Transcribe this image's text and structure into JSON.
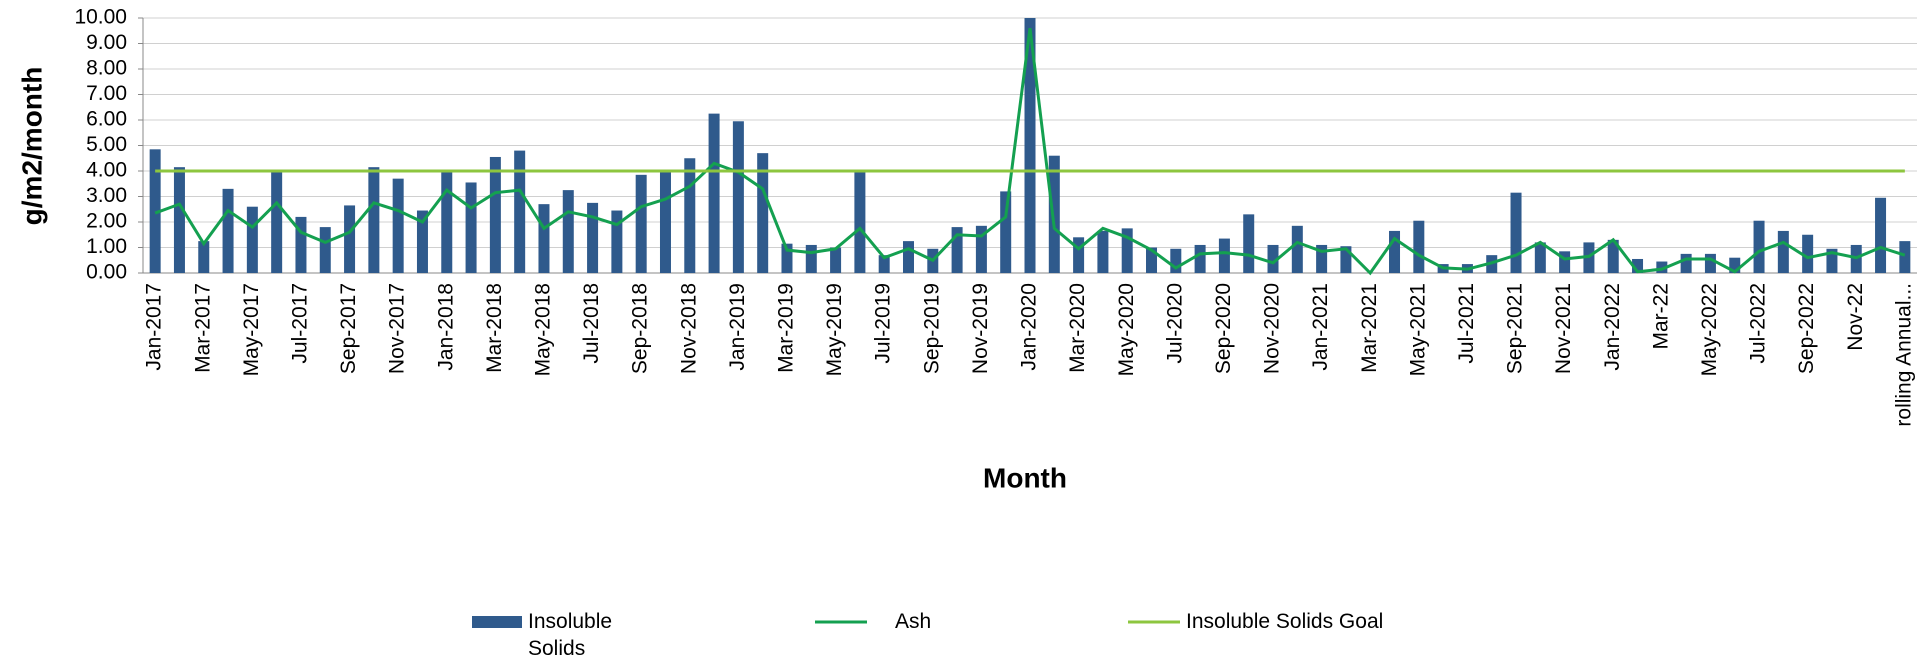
{
  "chart_data": {
    "type": "bar_line",
    "x_label": "Month",
    "y_label": "g/m2/month",
    "categories": [
      "Jan-2017",
      null,
      "Mar-2017",
      null,
      "May-2017",
      null,
      "Jul-2017",
      null,
      "Sep-2017",
      null,
      "Nov-2017",
      null,
      "Jan-2018",
      null,
      "Mar-2018",
      null,
      "May-2018",
      null,
      "Jul-2018",
      null,
      "Sep-2018",
      null,
      "Nov-2018",
      null,
      "Jan-2019",
      null,
      "Mar-2019",
      null,
      "May-2019",
      null,
      "Jul-2019",
      null,
      "Sep-2019",
      null,
      "Nov-2019",
      null,
      "Jan-2020",
      null,
      "Mar-2020",
      null,
      "May-2020",
      null,
      "Jul-2020",
      null,
      "Sep-2020",
      null,
      "Nov-2020",
      null,
      "Jan-2021",
      null,
      "Mar-2021",
      null,
      "May-2021",
      null,
      "Jul-2021",
      null,
      "Sep-2021",
      null,
      "Nov-2021",
      null,
      "Jan-2022",
      null,
      "Mar-22",
      null,
      "May-2022",
      null,
      "Jul-2022",
      null,
      "Sep-2022",
      null,
      "Nov-22",
      null,
      "rolling Annual..."
    ],
    "series": [
      {
        "name": "Insoluble Solids",
        "kind": "bar",
        "color": "#2f5a8c",
        "values": [
          4.85,
          4.15,
          1.25,
          3.3,
          2.6,
          4.0,
          2.2,
          1.8,
          2.65,
          4.15,
          3.7,
          2.45,
          4.0,
          3.55,
          4.55,
          4.8,
          2.7,
          3.25,
          2.75,
          2.45,
          3.85,
          3.95,
          4.5,
          6.25,
          5.95,
          4.7,
          1.15,
          1.1,
          1.0,
          4.0,
          0.7,
          1.25,
          0.95,
          1.8,
          1.85,
          3.2,
          10.0,
          4.6,
          1.4,
          1.65,
          1.75,
          1.0,
          0.95,
          1.1,
          1.35,
          2.3,
          1.1,
          1.85,
          1.1,
          1.05,
          0.0,
          1.65,
          2.05,
          0.35,
          0.35,
          0.7,
          3.15,
          1.2,
          0.85,
          1.2,
          1.3,
          0.55,
          0.45,
          0.75,
          0.75,
          0.6,
          2.05,
          1.65,
          1.5,
          0.95,
          1.1,
          2.95,
          1.25
        ]
      },
      {
        "name": "Ash",
        "kind": "line",
        "color": "#14a050",
        "values": [
          2.35,
          2.7,
          1.15,
          2.45,
          1.8,
          2.75,
          1.6,
          1.2,
          1.6,
          2.75,
          2.45,
          2.0,
          3.25,
          2.55,
          3.15,
          3.25,
          1.75,
          2.4,
          2.2,
          1.9,
          2.6,
          2.9,
          3.4,
          4.3,
          3.95,
          3.3,
          0.9,
          0.8,
          0.95,
          1.75,
          0.6,
          0.95,
          0.5,
          1.5,
          1.45,
          2.2,
          9.6,
          1.75,
          0.95,
          1.75,
          1.4,
          0.9,
          0.2,
          0.75,
          0.8,
          0.7,
          0.4,
          1.2,
          0.85,
          0.95,
          0.0,
          1.35,
          0.7,
          0.2,
          0.15,
          0.4,
          0.7,
          1.2,
          0.55,
          0.65,
          1.3,
          0.05,
          0.15,
          0.55,
          0.55,
          0.05,
          0.85,
          1.2,
          0.6,
          0.8,
          0.6,
          1.0,
          0.7
        ]
      },
      {
        "name": "Insoluble Solids Goal",
        "kind": "line",
        "color": "#8dc63f",
        "values": [
          4,
          4,
          4,
          4,
          4,
          4,
          4,
          4,
          4,
          4,
          4,
          4,
          4,
          4,
          4,
          4,
          4,
          4,
          4,
          4,
          4,
          4,
          4,
          4,
          4,
          4,
          4,
          4,
          4,
          4,
          4,
          4,
          4,
          4,
          4,
          4,
          4,
          4,
          4,
          4,
          4,
          4,
          4,
          4,
          4,
          4,
          4,
          4,
          4,
          4,
          4,
          4,
          4,
          4,
          4,
          4,
          4,
          4,
          4,
          4,
          4,
          4,
          4,
          4,
          4,
          4,
          4,
          4,
          4,
          4,
          4,
          4,
          4
        ]
      }
    ],
    "ylim": [
      0,
      10
    ],
    "yticks": [
      {
        "value": 0,
        "label": "0.00"
      },
      {
        "value": 1,
        "label": "1.00"
      },
      {
        "value": 2,
        "label": "2.00"
      },
      {
        "value": 3,
        "label": "3.00"
      },
      {
        "value": 4,
        "label": "4.00"
      },
      {
        "value": 5,
        "label": "5.00"
      },
      {
        "value": 6,
        "label": "6.00"
      },
      {
        "value": 7,
        "label": "7.00"
      },
      {
        "value": 8,
        "label": "8.00"
      },
      {
        "value": 9,
        "label": "9.00"
      },
      {
        "value": 10,
        "label": "10.00"
      }
    ],
    "grid": true,
    "legend": "bottom"
  }
}
